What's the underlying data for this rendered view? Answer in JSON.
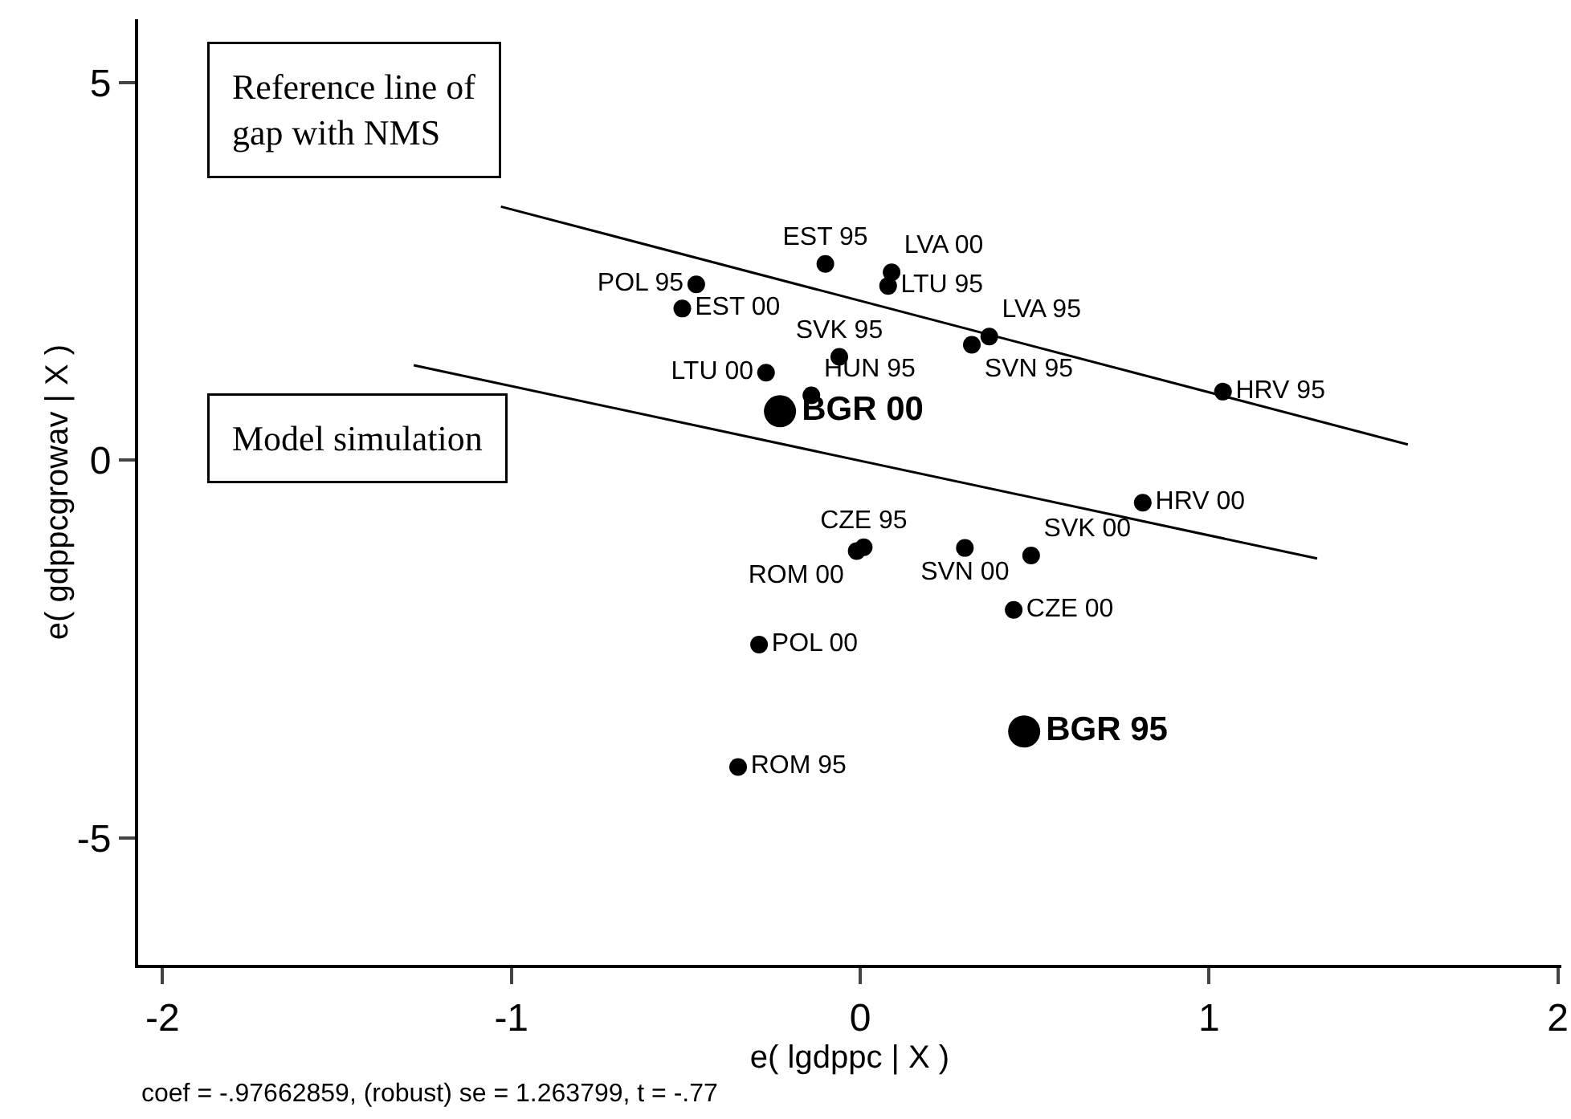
{
  "chart_data": {
    "type": "scatter",
    "xlabel": "e( lgdppc | X )",
    "ylabel": "e( gdppcgrowav | X )",
    "xlim": [
      -2.07,
      2.01
    ],
    "ylim": [
      -6.68,
      5.84
    ],
    "xticks": [
      -2,
      -1,
      0,
      1,
      2
    ],
    "yticks": [
      -5,
      0,
      5
    ],
    "series": [
      {
        "color": "#000000",
        "marker": "circle",
        "x": [
          -0.1,
          0.09,
          0.08,
          -0.47,
          -0.51,
          0.37,
          0.32,
          -0.06,
          -0.27,
          -0.14,
          1.04,
          0.81,
          0.01,
          -0.01,
          0.3,
          0.49,
          0.44,
          -0.29,
          -0.35
        ],
        "values": [
          2.6,
          2.49,
          2.31,
          2.33,
          2.01,
          1.64,
          1.53,
          1.37,
          1.16,
          0.86,
          0.91,
          -0.56,
          -1.15,
          -1.2,
          -1.16,
          -1.26,
          -1.98,
          -2.44,
          -4.06
        ],
        "value_labels": [
          "EST 95",
          "LVA 00",
          "LTU 95",
          "POL 95",
          "EST 00",
          "LVA 95",
          "SVN 95",
          "SVK 95",
          "LTU 00",
          "HUN 95",
          "HRV 95",
          "HRV 00",
          "CZE 95",
          "ROM 00",
          "SVN 00",
          "SVK 00",
          "CZE 00",
          "POL 00",
          "ROM 95"
        ]
      },
      {
        "color": "#000000",
        "marker": "circle",
        "x": [
          -0.23,
          0.47
        ],
        "values": [
          0.65,
          -3.59
        ],
        "value_labels": [
          "BGR 00",
          "BGR 95"
        ]
      },
      {
        "type": "line",
        "color": "#000000",
        "x": [
          -1.03,
          1.57
        ],
        "values": [
          3.36,
          0.21
        ]
      },
      {
        "type": "line",
        "color": "#000000",
        "x": [
          -1.28,
          1.31
        ],
        "values": [
          1.26,
          -1.3
        ]
      }
    ],
    "annotations": [
      "Reference line of gap with NMS",
      "Model simulation",
      "coef = -.97662859, (robust) se = 1.263799, t = -.77"
    ]
  }
}
